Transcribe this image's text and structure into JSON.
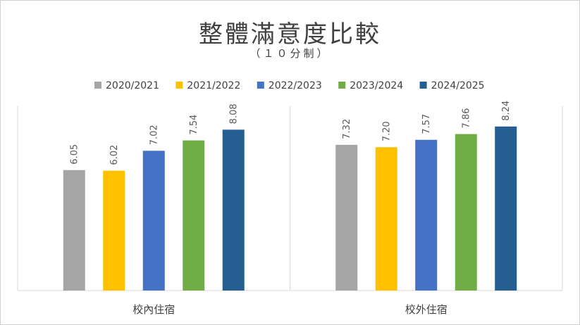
{
  "chart_data": {
    "type": "bar",
    "title": "整體滿意度比較",
    "subtitle": "（１０分制）",
    "xlabel": "",
    "ylabel": "",
    "categories": [
      "校內住宿",
      "校外住宿"
    ],
    "series": [
      {
        "name": "2020/2021",
        "color": "#a5a5a5",
        "values": [
          6.05,
          7.32
        ],
        "labels": [
          "6.05",
          "7.32"
        ]
      },
      {
        "name": "2021/2022",
        "color": "#ffc000",
        "values": [
          6.02,
          7.2
        ],
        "labels": [
          "6.02",
          "7.20"
        ]
      },
      {
        "name": "2022/2023",
        "color": "#4472c4",
        "values": [
          7.02,
          7.57
        ],
        "labels": [
          "7.02",
          "7.57"
        ]
      },
      {
        "name": "2023/2024",
        "color": "#70ad47",
        "values": [
          7.54,
          7.86
        ],
        "labels": [
          "7.54",
          "7.86"
        ]
      },
      {
        "name": "2024/2025",
        "color": "#255e91",
        "values": [
          8.08,
          8.24
        ],
        "labels": [
          "8.08",
          "8.24"
        ]
      }
    ],
    "ylim": [
      0,
      10
    ],
    "grid": false,
    "legend": "top"
  }
}
